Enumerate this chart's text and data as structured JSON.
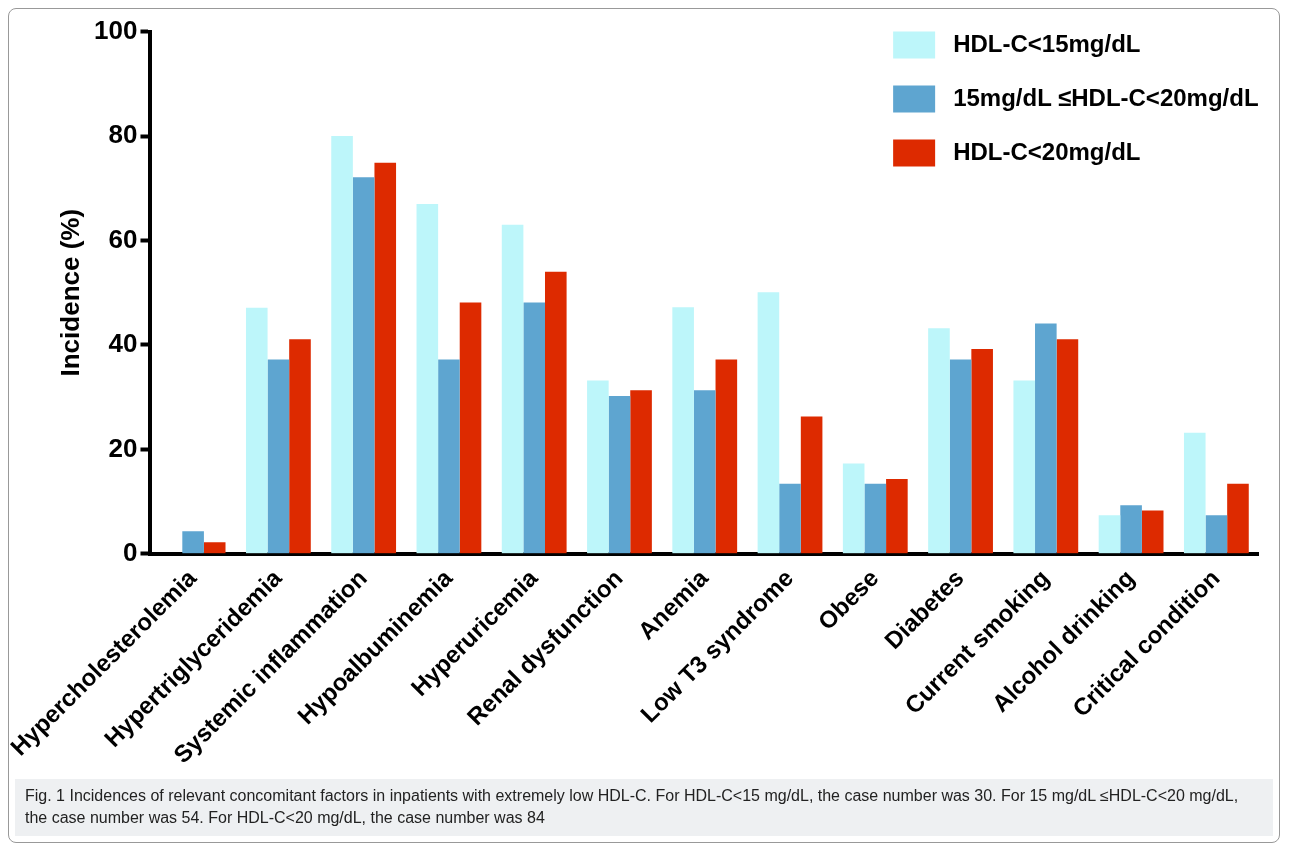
{
  "chart_data": {
    "type": "bar",
    "ylabel": "Incidence (%)",
    "categories": [
      "Hypercholesterolemia",
      "Hypertriglyceridemia",
      "Systemic inflammation",
      "Hypoalbuminemia",
      "Hyperuricemia",
      "Renal dysfunction",
      "Anemia",
      "Low T3 syndrome",
      "Obese",
      "Diabetes",
      "Current smoking",
      "Alcohol drinking",
      "Critical condition"
    ],
    "series": [
      {
        "name": "HDL-C<15mg/dL",
        "color": "#bdf6fa",
        "values": [
          0,
          47.1,
          80,
          67,
          63,
          33.2,
          47.2,
          50.1,
          17.3,
          43.2,
          33.2,
          7.4,
          23.2
        ]
      },
      {
        "name": "15mg/dL ≤HDL-C<20mg/dL",
        "color": "#5ea5d0",
        "values": [
          4.3,
          37.2,
          72.1,
          37.2,
          48.1,
          30.2,
          31.3,
          13.4,
          13.4,
          37.2,
          44.1,
          9.3,
          7.4
        ]
      },
      {
        "name": "HDL-C<20mg/dL",
        "color": "#dd2a00",
        "values": [
          2.2,
          41.1,
          74.9,
          48.1,
          54,
          31.3,
          37.2,
          26.3,
          14.3,
          39.2,
          41.1,
          8.3,
          13.4
        ]
      }
    ],
    "ylim": [
      0,
      100
    ],
    "yticks": [
      0,
      20,
      40,
      60,
      80,
      100
    ],
    "grid": false,
    "legend": "top right",
    "annotations": [
      "Fig. 1 Incidences of relevant concomitant factors in inpatients with extremely low HDL-C. For HDL-C<15 mg/dL, the case number was 30. For 15 mg/dL ≤HDL-C<20 mg/dL, the case number was 54. For HDL-C<20 mg/dL, the case number was 84"
    ]
  }
}
